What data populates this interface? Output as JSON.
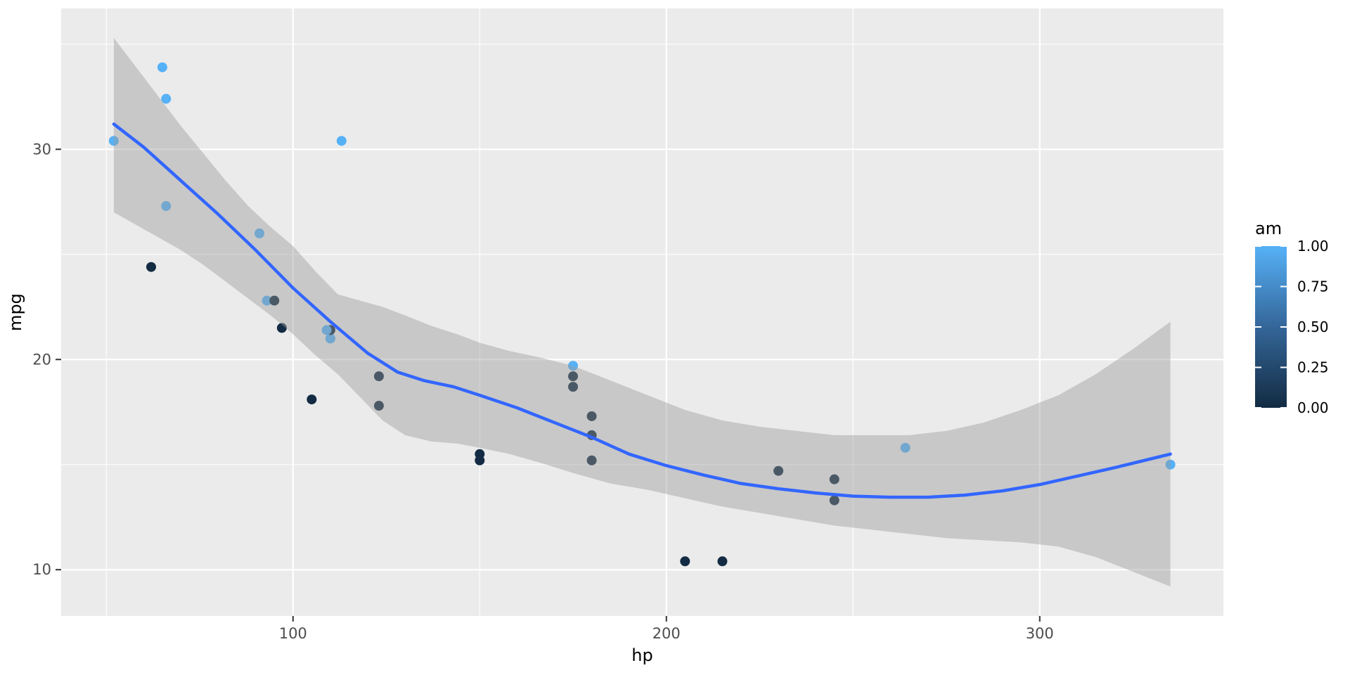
{
  "chart_data": {
    "type": "scatter",
    "title": "",
    "xlabel": "hp",
    "ylabel": "mpg",
    "x_range": [
      37.9,
      349.2
    ],
    "y_range": [
      7.8,
      36.7
    ],
    "x_ticks": [
      100,
      200,
      300
    ],
    "x_tick_labels": [
      "100",
      "200",
      "300"
    ],
    "x_minor_ticks": [
      50,
      150,
      250
    ],
    "y_ticks": [
      10,
      20,
      30
    ],
    "y_tick_labels": [
      "10",
      "20",
      "30"
    ],
    "y_minor_ticks": [
      15,
      25,
      35
    ],
    "grid": true,
    "panel_bg_color": "#EBEBEB",
    "grid_major_color": "#FFFFFF",
    "grid_minor_color": "#FFFFFF",
    "tick_mark_color": "#333333",
    "smooth_line_color": "#3366FF",
    "ribbon_color": "#999999",
    "ribbon_opacity": 0.42,
    "point_color_am0": "#132B43",
    "point_color_am1": "#56B1F7",
    "point_radius": 7,
    "series": [
      {
        "name": "mtcars points (color = am)",
        "points": [
          {
            "hp": 110,
            "mpg": 21.0,
            "am": 1
          },
          {
            "hp": 110,
            "mpg": 21.0,
            "am": 1
          },
          {
            "hp": 93,
            "mpg": 22.8,
            "am": 1
          },
          {
            "hp": 110,
            "mpg": 21.4,
            "am": 0
          },
          {
            "hp": 175,
            "mpg": 18.7,
            "am": 0
          },
          {
            "hp": 105,
            "mpg": 18.1,
            "am": 0
          },
          {
            "hp": 245,
            "mpg": 14.3,
            "am": 0
          },
          {
            "hp": 62,
            "mpg": 24.4,
            "am": 0
          },
          {
            "hp": 95,
            "mpg": 22.8,
            "am": 0
          },
          {
            "hp": 123,
            "mpg": 19.2,
            "am": 0
          },
          {
            "hp": 123,
            "mpg": 17.8,
            "am": 0
          },
          {
            "hp": 180,
            "mpg": 16.4,
            "am": 0
          },
          {
            "hp": 180,
            "mpg": 17.3,
            "am": 0
          },
          {
            "hp": 180,
            "mpg": 15.2,
            "am": 0
          },
          {
            "hp": 205,
            "mpg": 10.4,
            "am": 0
          },
          {
            "hp": 215,
            "mpg": 10.4,
            "am": 0
          },
          {
            "hp": 230,
            "mpg": 14.7,
            "am": 0
          },
          {
            "hp": 66,
            "mpg": 32.4,
            "am": 1
          },
          {
            "hp": 52,
            "mpg": 30.4,
            "am": 1
          },
          {
            "hp": 65,
            "mpg": 33.9,
            "am": 1
          },
          {
            "hp": 97,
            "mpg": 21.5,
            "am": 0
          },
          {
            "hp": 150,
            "mpg": 15.5,
            "am": 0
          },
          {
            "hp": 150,
            "mpg": 15.2,
            "am": 0
          },
          {
            "hp": 245,
            "mpg": 13.3,
            "am": 0
          },
          {
            "hp": 175,
            "mpg": 19.2,
            "am": 0
          },
          {
            "hp": 66,
            "mpg": 27.3,
            "am": 1
          },
          {
            "hp": 91,
            "mpg": 26.0,
            "am": 1
          },
          {
            "hp": 113,
            "mpg": 30.4,
            "am": 1
          },
          {
            "hp": 264,
            "mpg": 15.8,
            "am": 1
          },
          {
            "hp": 175,
            "mpg": 19.7,
            "am": 1
          },
          {
            "hp": 335,
            "mpg": 15.0,
            "am": 1
          },
          {
            "hp": 109,
            "mpg": 21.4,
            "am": 1
          }
        ]
      }
    ],
    "smooth_line": [
      [
        52,
        31.2
      ],
      [
        60,
        30.1
      ],
      [
        70,
        28.5
      ],
      [
        80,
        26.9
      ],
      [
        90,
        25.2
      ],
      [
        100,
        23.4
      ],
      [
        110,
        21.8
      ],
      [
        120,
        20.3
      ],
      [
        128,
        19.4
      ],
      [
        135,
        19.0
      ],
      [
        143,
        18.7
      ],
      [
        150,
        18.3
      ],
      [
        160,
        17.7
      ],
      [
        170,
        17.0
      ],
      [
        180,
        16.3
      ],
      [
        190,
        15.5
      ],
      [
        200,
        14.95
      ],
      [
        210,
        14.5
      ],
      [
        220,
        14.1
      ],
      [
        230,
        13.85
      ],
      [
        240,
        13.65
      ],
      [
        250,
        13.5
      ],
      [
        260,
        13.45
      ],
      [
        270,
        13.45
      ],
      [
        280,
        13.55
      ],
      [
        290,
        13.75
      ],
      [
        300,
        14.05
      ],
      [
        310,
        14.45
      ],
      [
        320,
        14.85
      ],
      [
        335,
        15.5
      ]
    ],
    "ribbon_upper": [
      [
        52,
        35.3
      ],
      [
        58,
        33.9
      ],
      [
        64,
        32.5
      ],
      [
        70,
        31.1
      ],
      [
        76,
        29.8
      ],
      [
        82,
        28.5
      ],
      [
        88,
        27.3
      ],
      [
        94,
        26.3
      ],
      [
        100,
        25.4
      ],
      [
        106,
        24.2
      ],
      [
        112,
        23.1
      ],
      [
        118,
        22.8
      ],
      [
        124,
        22.5
      ],
      [
        130,
        22.1
      ],
      [
        137,
        21.6
      ],
      [
        144,
        21.2
      ],
      [
        150,
        20.8
      ],
      [
        158,
        20.4
      ],
      [
        166,
        20.1
      ],
      [
        175,
        19.7
      ],
      [
        185,
        19.0
      ],
      [
        195,
        18.3
      ],
      [
        205,
        17.6
      ],
      [
        215,
        17.1
      ],
      [
        225,
        16.8
      ],
      [
        235,
        16.6
      ],
      [
        245,
        16.4
      ],
      [
        255,
        16.4
      ],
      [
        265,
        16.4
      ],
      [
        275,
        16.6
      ],
      [
        285,
        17.0
      ],
      [
        295,
        17.6
      ],
      [
        305,
        18.3
      ],
      [
        315,
        19.3
      ],
      [
        325,
        20.5
      ],
      [
        335,
        21.8
      ]
    ],
    "ribbon_lower": [
      [
        52,
        27.0
      ],
      [
        58,
        26.4
      ],
      [
        64,
        25.8
      ],
      [
        70,
        25.2
      ],
      [
        76,
        24.5
      ],
      [
        82,
        23.7
      ],
      [
        88,
        22.9
      ],
      [
        94,
        22.1
      ],
      [
        100,
        21.2
      ],
      [
        106,
        20.2
      ],
      [
        112,
        19.3
      ],
      [
        118,
        18.2
      ],
      [
        124,
        17.1
      ],
      [
        130,
        16.4
      ],
      [
        137,
        16.1
      ],
      [
        144,
        16.0
      ],
      [
        150,
        15.8
      ],
      [
        158,
        15.5
      ],
      [
        166,
        15.1
      ],
      [
        175,
        14.6
      ],
      [
        185,
        14.1
      ],
      [
        195,
        13.8
      ],
      [
        205,
        13.4
      ],
      [
        215,
        13.0
      ],
      [
        225,
        12.7
      ],
      [
        235,
        12.4
      ],
      [
        245,
        12.1
      ],
      [
        255,
        11.9
      ],
      [
        265,
        11.7
      ],
      [
        275,
        11.5
      ],
      [
        285,
        11.4
      ],
      [
        295,
        11.3
      ],
      [
        305,
        11.1
      ],
      [
        315,
        10.6
      ],
      [
        325,
        9.9
      ],
      [
        335,
        9.2
      ]
    ],
    "legend": {
      "title": "am",
      "type": "colorbar",
      "gradient_top_color": "#56B1F7",
      "gradient_mid_color": "#346699",
      "gradient_bottom_color": "#132B43",
      "ticks": [
        {
          "value": 1.0,
          "label": "1.00"
        },
        {
          "value": 0.75,
          "label": "0.75"
        },
        {
          "value": 0.5,
          "label": "0.50"
        },
        {
          "value": 0.25,
          "label": "0.25"
        },
        {
          "value": 0.0,
          "label": "0.00"
        }
      ]
    }
  }
}
